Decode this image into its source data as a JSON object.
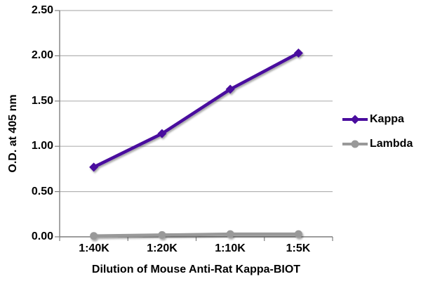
{
  "figure": {
    "background_color": "#ffffff",
    "text_color": "#000000"
  },
  "chart_data": {
    "type": "line",
    "title": "",
    "xlabel": "Dilution of Mouse Anti-Rat Kappa-BIOT",
    "ylabel": "O.D. at 405 nm",
    "categories": [
      "1:40K",
      "1:20K",
      "1:10K",
      "1:5K"
    ],
    "series": [
      {
        "name": "Kappa",
        "color": "#4a0d9e",
        "marker": "diamond",
        "values": [
          0.77,
          1.14,
          1.63,
          2.03
        ]
      },
      {
        "name": "Lambda",
        "color": "#999999",
        "marker": "circle",
        "values": [
          0.01,
          0.02,
          0.03,
          0.03
        ]
      }
    ],
    "ylim": [
      0,
      2.5
    ],
    "ytick_step": 0.5,
    "yticklabels": [
      "0.00",
      "0.50",
      "1.00",
      "1.50",
      "2.00",
      "2.50"
    ],
    "grid": "horizontal",
    "legend_position": "right",
    "axis_color": "#7f7f7f",
    "gridline_color": "#b3b3b3"
  }
}
